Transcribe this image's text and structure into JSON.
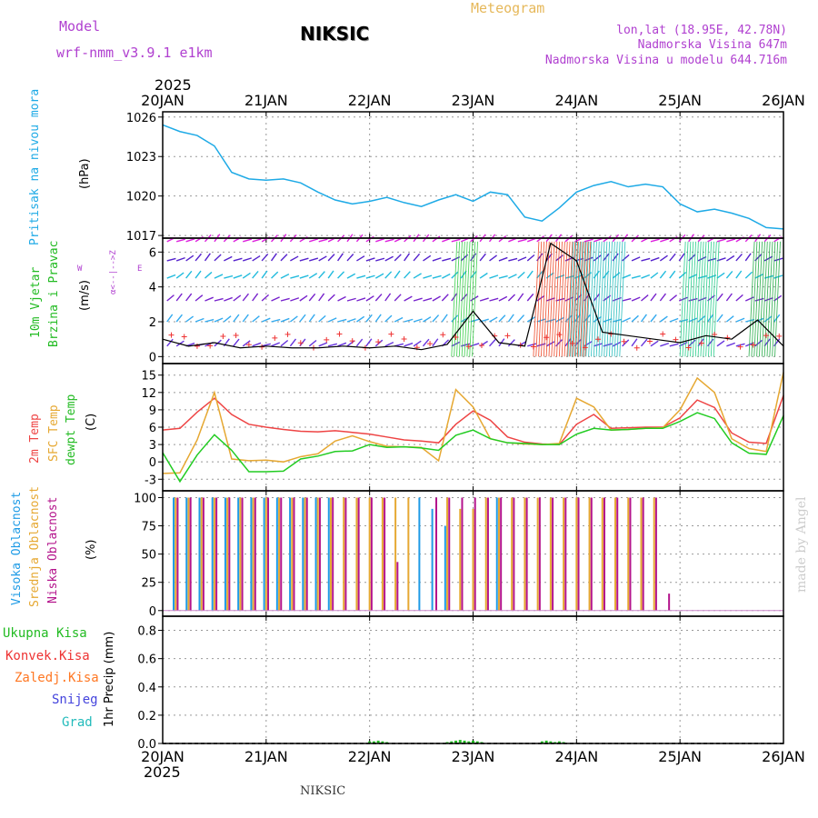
{
  "header": {
    "model_label": "Model",
    "model_name": "wrf-nmm_v3.9.1 e1km",
    "station": "NIKSIC",
    "meteogram": "Meteogram",
    "lonlat": "lon,lat (18.95E, 42.78N)",
    "elevation": "Nadmorska Visina 647m",
    "model_elevation": "Nadmorska Visina u modelu 644.716m",
    "year_top": "2025",
    "year_bottom": "2025",
    "footer_station": "NIKSIC",
    "credit": "made by Angel"
  },
  "colors": {
    "pressure": "#1eaae6",
    "temp2m": "#ee4444",
    "sfc": "#e6a832",
    "dewpt": "#22cc22",
    "high_cloud": "#1e9be6",
    "mid_cloud": "#e6a832",
    "low_cloud": "#b4148c",
    "wind_black": "#000000",
    "gust": "#ee3333",
    "total_precip": "#22bb22",
    "conv_precip": "#ee3333",
    "frz_precip": "#ff7722",
    "snow": "#4444dd",
    "graupel": "#22bbbb",
    "purple_label": "#b040d0",
    "green_label": "#22bb22"
  },
  "x_axis": {
    "ticks": [
      "20JAN",
      "21JAN",
      "22JAN",
      "23JAN",
      "24JAN",
      "25JAN",
      "26JAN"
    ]
  },
  "panels": {
    "pressure": {
      "labels": [
        "Pritisak na nivou mora",
        "(hPa)"
      ]
    },
    "wind": {
      "labels": [
        "10m Vjetar",
        "Brzina i Pravac",
        "(m/s)"
      ],
      "compass_ns": "α<--|-->Z",
      "compass_w": "W",
      "compass_e": "E"
    },
    "temp": {
      "labels": [
        "2m Temp",
        "SFC Temp",
        "dewpt Temp",
        "(C)"
      ]
    },
    "cloud": {
      "labels": [
        "Visoka Oblacnost",
        "Srednja Oblacnost",
        "Niska Oblacnost",
        "(%)"
      ]
    },
    "precip": {
      "labels": [
        "Ukupna Kisa",
        "Konvek.Kisa",
        "Zaledj.Kisa",
        "Snijeg",
        "Grad",
        "1hr Precip (mm)"
      ]
    }
  },
  "chart_data": [
    {
      "type": "line",
      "x": [
        0,
        4,
        8,
        12,
        16,
        20,
        24,
        28,
        32,
        36,
        40,
        44,
        48,
        52,
        56,
        60,
        64,
        68,
        72,
        76,
        80,
        84,
        88,
        92,
        96,
        100,
        104,
        108,
        112,
        116,
        120,
        124,
        128,
        132,
        136,
        140,
        144
      ],
      "series": [
        {
          "values": [
            1025.4,
            1024.9,
            1024.6,
            1023.8,
            1021.8,
            1021.3,
            1021.2,
            1021.3,
            1021.0,
            1020.3,
            1019.7,
            1019.4,
            1019.6,
            1019.9,
            1019.5,
            1019.2,
            1019.7,
            1020.1,
            1019.6,
            1020.3,
            1020.1,
            1018.4,
            1018.1,
            1019.1,
            1020.3,
            1020.8,
            1021.1,
            1020.7,
            1020.9,
            1020.7,
            1019.4,
            1018.8,
            1019.0,
            1018.7,
            1018.3,
            1017.6,
            1017.5
          ]
        }
      ],
      "yticks": [
        1017,
        1020,
        1023,
        1026
      ],
      "ylim": [
        1016.8,
        1026.4
      ]
    },
    {
      "type": "line",
      "x": [
        0,
        6,
        12,
        18,
        24,
        30,
        36,
        42,
        48,
        54,
        60,
        66,
        72,
        78,
        84,
        90,
        96,
        102,
        108,
        114,
        120,
        126,
        132,
        138,
        144
      ],
      "series": [
        {
          "values": [
            1.0,
            0.6,
            0.8,
            0.5,
            0.6,
            0.5,
            0.5,
            0.6,
            0.5,
            0.6,
            0.4,
            0.7,
            2.6,
            0.8,
            0.6,
            6.5,
            5.5,
            1.4,
            1.2,
            1.0,
            0.8,
            1.2,
            1.0,
            2.1,
            0.6
          ]
        }
      ],
      "yticks": [
        0,
        2,
        4,
        6
      ],
      "ylim": [
        -0.4,
        6.8
      ]
    },
    {
      "type": "line",
      "x": [
        0,
        4,
        8,
        12,
        16,
        20,
        24,
        28,
        32,
        36,
        40,
        44,
        48,
        52,
        56,
        60,
        64,
        68,
        72,
        76,
        80,
        84,
        88,
        92,
        96,
        100,
        104,
        108,
        112,
        116,
        120,
        124,
        128,
        132,
        136,
        140,
        144
      ],
      "series": [
        {
          "values": [
            5.5,
            5.8,
            8.6,
            11.0,
            8.2,
            6.5,
            6.0,
            5.6,
            5.3,
            5.2,
            5.4,
            5.1,
            4.8,
            4.3,
            3.8,
            3.6,
            3.3,
            6.5,
            8.8,
            7.2,
            4.3,
            3.4,
            3.1,
            3.0,
            6.5,
            8.2,
            5.8,
            5.9,
            6.0,
            6.0,
            7.6,
            10.7,
            9.4,
            5.0,
            3.4,
            3.2,
            11.5
          ]
        },
        {
          "values": [
            -2.0,
            -1.9,
            3.8,
            12.0,
            0.5,
            0.2,
            0.3,
            0.0,
            0.9,
            1.4,
            3.6,
            4.5,
            3.5,
            2.7,
            2.6,
            2.5,
            0.2,
            12.5,
            9.5,
            4.0,
            3.3,
            3.1,
            3.0,
            3.2,
            11.0,
            9.5,
            5.5,
            5.6,
            5.8,
            5.9,
            9.0,
            14.5,
            12.0,
            4.0,
            2.3,
            1.8,
            15.5
          ]
        },
        {
          "values": [
            1.6,
            -3.4,
            1.2,
            4.7,
            2.0,
            -1.7,
            -1.7,
            -1.6,
            0.5,
            1.0,
            1.8,
            1.9,
            3.0,
            2.5,
            2.6,
            2.4,
            2.0,
            4.6,
            5.5,
            4.0,
            3.3,
            3.2,
            3.0,
            3.0,
            4.8,
            5.8,
            5.5,
            5.6,
            5.8,
            5.8,
            7.0,
            8.5,
            7.5,
            3.3,
            1.5,
            1.3,
            8.0
          ]
        }
      ],
      "yticks": [
        -3,
        0,
        3,
        6,
        9,
        12,
        15
      ],
      "ylim": [
        -5,
        17
      ]
    },
    {
      "type": "bar",
      "x_hours": [
        3,
        6,
        9,
        12,
        15,
        18,
        21,
        24,
        27,
        30,
        33,
        36,
        39,
        42,
        45,
        48,
        51,
        54,
        57,
        60,
        63,
        66,
        69,
        72,
        75,
        78,
        81,
        84,
        87,
        90,
        93,
        96,
        99,
        102,
        105,
        108,
        111,
        114,
        117,
        120
      ],
      "series": [
        {
          "values": [
            100,
            100,
            100,
            100,
            100,
            100,
            100,
            100,
            100,
            100,
            100,
            100,
            100,
            0,
            0,
            0,
            0,
            0,
            0,
            100,
            90,
            75,
            0,
            0,
            0,
            100,
            0,
            0,
            0,
            0,
            0,
            0,
            0,
            0,
            0,
            0,
            0,
            0,
            0,
            0
          ]
        },
        {
          "values": [
            100,
            100,
            100,
            100,
            100,
            100,
            100,
            100,
            100,
            100,
            100,
            100,
            100,
            100,
            100,
            100,
            100,
            100,
            100,
            0,
            0,
            100,
            90,
            90,
            100,
            100,
            100,
            100,
            100,
            100,
            100,
            100,
            100,
            100,
            100,
            100,
            100,
            100,
            0,
            0
          ]
        },
        {
          "values": [
            100,
            100,
            100,
            100,
            100,
            100,
            100,
            100,
            100,
            100,
            100,
            100,
            100,
            100,
            100,
            100,
            100,
            43,
            0,
            0,
            100,
            100,
            100,
            100,
            100,
            100,
            100,
            100,
            100,
            100,
            100,
            100,
            100,
            100,
            100,
            100,
            100,
            100,
            15,
            0
          ]
        }
      ],
      "yticks": [
        0,
        25,
        50,
        75,
        100
      ],
      "ylim": [
        -5,
        106
      ]
    },
    {
      "type": "bar",
      "x_hours": [
        48,
        49,
        50,
        51,
        52,
        66,
        67,
        68,
        69,
        70,
        71,
        72,
        73,
        74,
        88,
        89,
        90,
        91,
        92,
        93
      ],
      "series": [
        {
          "values": [
            0.015,
            0.015,
            0.02,
            0.015,
            0.01,
            0.01,
            0.015,
            0.02,
            0.025,
            0.02,
            0.015,
            0.02,
            0.015,
            0.01,
            0.015,
            0.02,
            0.015,
            0.01,
            0.015,
            0.01
          ]
        }
      ],
      "yticks": [
        0,
        0.2,
        0.4,
        0.6,
        0.8
      ],
      "ylim": [
        0,
        0.9
      ]
    }
  ]
}
